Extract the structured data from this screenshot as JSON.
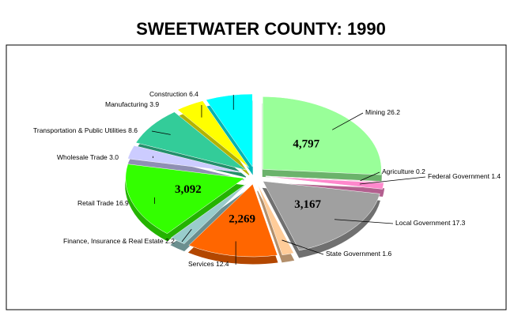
{
  "chart_data": {
    "type": "pie",
    "title": "SWEETWATER COUNTY:  1990",
    "categories": [
      "Mining",
      "Agriculture",
      "Federal Government",
      "Local Government",
      "State Government",
      "Services",
      "Finance, Insurance & Real Estate",
      "Retail Trade",
      "Wholesale Trade",
      "Transportation & Public Utilities",
      "Manufacturing",
      "Construction"
    ],
    "values": [
      26.2,
      0.2,
      1.4,
      17.3,
      1.6,
      12.4,
      2.2,
      16.9,
      3.0,
      8.6,
      3.9,
      6.4
    ],
    "value_labels": [
      "26.2",
      "0.2",
      "1.4",
      "17.3",
      "1.6",
      "12.4",
      "2.2",
      "16.9",
      "3.0",
      "8.6",
      "3.9",
      "6.4"
    ],
    "counts": [
      {
        "value": 4797,
        "label": "4,797"
      },
      null,
      null,
      {
        "value": 3167,
        "label": "3,167"
      },
      null,
      {
        "value": 2269,
        "label": "2,269"
      },
      null,
      {
        "value": 3092,
        "label": "3,092"
      },
      null,
      null,
      null,
      null
    ],
    "colors": [
      "#99ff99",
      "#ff99cc",
      "#ff88cc",
      "#a0a0a0",
      "#ffcc99",
      "#ff6600",
      "#99cccc",
      "#33ff00",
      "#ccccff",
      "#33cc99",
      "#ffff00",
      "#00ffff"
    ]
  }
}
